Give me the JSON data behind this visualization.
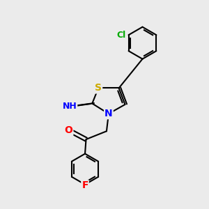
{
  "background_color": "#ebebeb",
  "bond_color": "#000000",
  "bond_width": 1.5,
  "atom_colors": {
    "S": "#ccaa00",
    "N": "#0000ff",
    "O": "#ff0000",
    "F": "#ff0000",
    "Cl": "#00aa00",
    "H": "#444444",
    "C": "#000000"
  },
  "font_size": 9
}
